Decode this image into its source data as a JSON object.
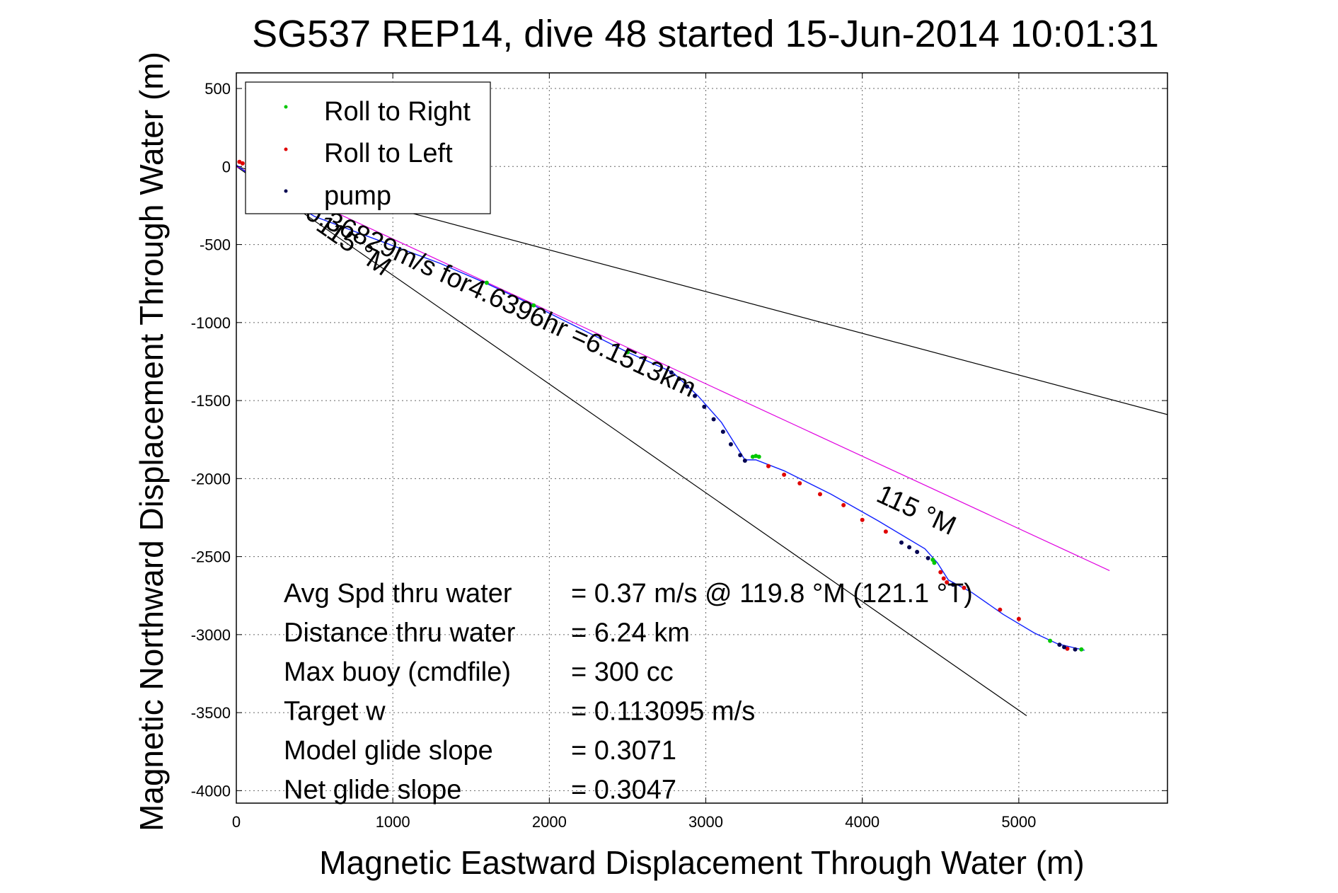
{
  "chart_data": {
    "type": "scatter",
    "title": "SG537 REP14, dive 48 started 15-Jun-2014 10:01:31",
    "xlabel": "Magnetic Eastward Displacement Through Water (m)",
    "ylabel": "Magnetic Northward Displacement Through Water (m)",
    "xlim": [
      0,
      5950
    ],
    "ylim": [
      -4080,
      600
    ],
    "xticks": [
      0,
      1000,
      2000,
      3000,
      4000,
      5000
    ],
    "yticks": [
      500,
      0,
      -500,
      -1000,
      -1500,
      -2000,
      -2500,
      -3000,
      -3500,
      -4000
    ],
    "grid": true,
    "legend": {
      "placement": "top-left",
      "entries": [
        {
          "label": "Roll to Right",
          "color": "#00c800"
        },
        {
          "label": "Roll to Left",
          "color": "#e00000"
        },
        {
          "label": "pump",
          "color": "#000050"
        }
      ]
    },
    "series": [
      {
        "name": "track",
        "color": "#1020ff",
        "x": [
          0,
          200,
          500,
          900,
          1300,
          1600,
          1900,
          2200,
          2500,
          2790,
          2950,
          3100,
          3200,
          3250,
          3320,
          3500,
          3800,
          4100,
          4400,
          4480,
          4550,
          4700,
          4900,
          5100,
          5250,
          5420
        ],
        "y": [
          10,
          -140,
          -320,
          -470,
          -620,
          -750,
          -890,
          -1040,
          -1190,
          -1320,
          -1470,
          -1640,
          -1800,
          -1880,
          -1880,
          -1950,
          -2100,
          -2270,
          -2450,
          -2540,
          -2650,
          -2730,
          -2870,
          -2990,
          -3060,
          -3100
        ]
      },
      {
        "name": "Roll to Right",
        "color": "#00c800",
        "x": [
          1600,
          1900,
          2500,
          3300,
          3320,
          3340,
          4450,
          4460,
          5200,
          5400
        ],
        "y": [
          -745,
          -890,
          -1190,
          -1860,
          -1855,
          -1860,
          -2520,
          -2540,
          -3040,
          -3095
        ]
      },
      {
        "name": "Roll to Left",
        "color": "#e00000",
        "x": [
          20,
          40,
          3400,
          3500,
          3600,
          3730,
          3880,
          4000,
          4150,
          4500,
          4520,
          4540,
          4650,
          4880,
          5000,
          5310
        ],
        "y": [
          30,
          20,
          -1920,
          -1975,
          -2030,
          -2100,
          -2170,
          -2265,
          -2340,
          -2600,
          -2640,
          -2665,
          -2700,
          -2840,
          -2900,
          -3090
        ]
      },
      {
        "name": "pump",
        "color": "#000050",
        "x": [
          2780,
          2830,
          2880,
          2930,
          2990,
          3050,
          3110,
          3160,
          3220,
          3250,
          4250,
          4300,
          4350,
          4420,
          4580,
          5260,
          5290,
          5360
        ],
        "y": [
          -1320,
          -1360,
          -1410,
          -1470,
          -1540,
          -1620,
          -1700,
          -1780,
          -1850,
          -1885,
          -2410,
          -2440,
          -2470,
          -2510,
          -2680,
          -3065,
          -3080,
          -3095
        ]
      }
    ],
    "reference_lines": [
      {
        "color": "#000000",
        "x": [
          0,
          5950
        ],
        "y": [
          0,
          -1590
        ]
      },
      {
        "color": "#000000",
        "x": [
          0,
          5050
        ],
        "y": [
          0,
          -3520
        ]
      },
      {
        "color": "#e000e0",
        "x": [
          0,
          5580
        ],
        "y": [
          0,
          -2590
        ]
      }
    ],
    "annotations": [
      {
        "text": "0.36829m/s for4.6396hr =6.1513km",
        "x": 430,
        "y": -330,
        "rotation_deg": 24.9
      },
      {
        "text": "115 °M",
        "x": 500,
        "y": -400,
        "rotation_deg": 34.9
      },
      {
        "text": "115 °M",
        "x": 4080,
        "y": -2140,
        "rotation_deg": 24.9
      }
    ],
    "stats": [
      {
        "label": "Avg Spd thru water",
        "value": "=  0.37 m/s @ 119.8 °M (121.1 °T)"
      },
      {
        "label": "Distance thru water",
        "value": "=  6.24 km"
      },
      {
        "label": "Max buoy (cmdfile)",
        "value": "= 300 cc"
      },
      {
        "label": "Target w",
        "value": "= 0.113095 m/s"
      },
      {
        "label": "Model glide slope",
        "value": "= 0.3071"
      },
      {
        "label": "Net glide slope",
        "value": "= 0.3047"
      }
    ]
  }
}
